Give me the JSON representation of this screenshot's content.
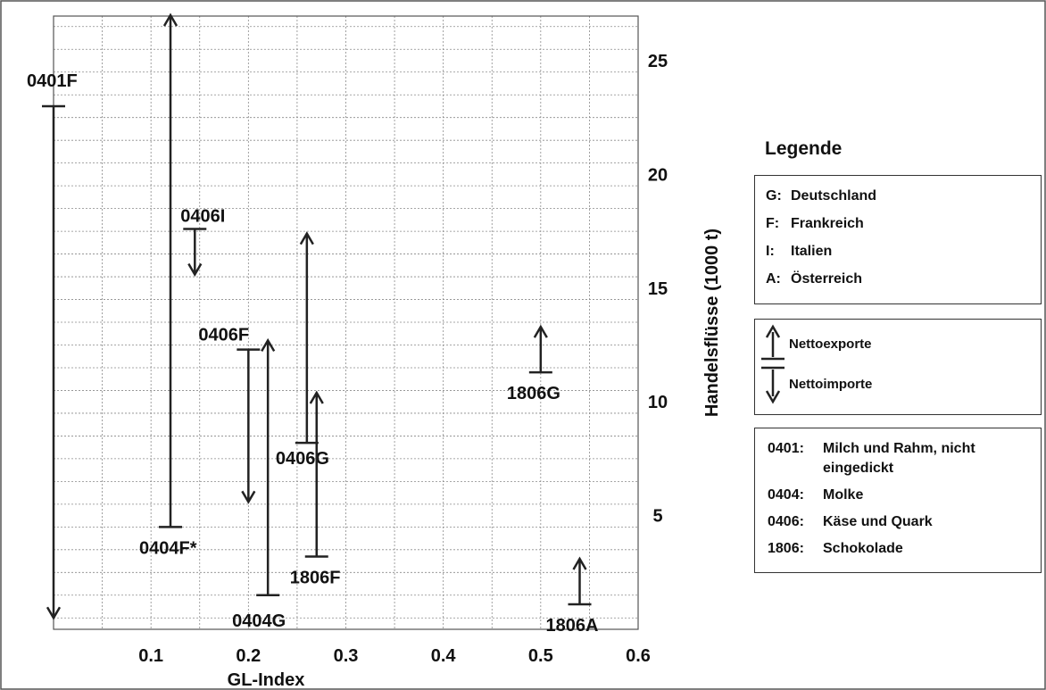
{
  "chart_data": {
    "type": "range-arrow",
    "xlabel": "GL-Index",
    "ylabel": "Handelsflüsse (1000 t)",
    "xlim": [
      0,
      0.6
    ],
    "ylim": [
      0,
      25
    ],
    "xticks": [
      "0.1",
      "0.2",
      "0.3",
      "0.4",
      "0.5",
      "0.6"
    ],
    "yticks": [
      "5",
      "10",
      "15",
      "20",
      "25"
    ],
    "grid": true,
    "series": [
      {
        "label": "0401F",
        "x": 0.0,
        "base": 23.0,
        "head": 0.5,
        "direction": "down"
      },
      {
        "label": "0404F*",
        "x": 0.12,
        "base": 4.5,
        "head": 27.0,
        "direction": "up"
      },
      {
        "label": "0406I",
        "x": 0.145,
        "base": 17.6,
        "head": 15.6,
        "direction": "down"
      },
      {
        "label": "0406F",
        "x": 0.2,
        "base": 12.3,
        "head": 5.6,
        "direction": "down"
      },
      {
        "label": "0404G",
        "x": 0.22,
        "base": 1.5,
        "head": 12.7,
        "direction": "up"
      },
      {
        "label": "0406G",
        "x": 0.26,
        "base": 8.2,
        "head": 17.4,
        "direction": "up"
      },
      {
        "label": "1806F",
        "x": 0.27,
        "base": 3.2,
        "head": 10.4,
        "direction": "up"
      },
      {
        "label": "1806G",
        "x": 0.5,
        "base": 11.3,
        "head": 13.3,
        "direction": "up"
      },
      {
        "label": "1806A",
        "x": 0.54,
        "base": 1.1,
        "head": 3.1,
        "direction": "up"
      }
    ]
  },
  "legend": {
    "title": "Legende",
    "countries": [
      {
        "code": "G:",
        "name": "Deutschland"
      },
      {
        "code": "F:",
        "name": "Frankreich"
      },
      {
        "code": "I:",
        "name": "Italien"
      },
      {
        "code": "A:",
        "name": "Österreich"
      }
    ],
    "arrows": {
      "export_label": "Nettoexporte",
      "import_label": "Nettoimporte"
    },
    "products": [
      {
        "code": "0401:",
        "name": "Milch und Rahm, nicht eingedickt"
      },
      {
        "code": "0404:",
        "name": "Molke"
      },
      {
        "code": "0406:",
        "name": "Käse und Quark"
      },
      {
        "code": "1806:",
        "name": "Schokolade"
      }
    ]
  }
}
